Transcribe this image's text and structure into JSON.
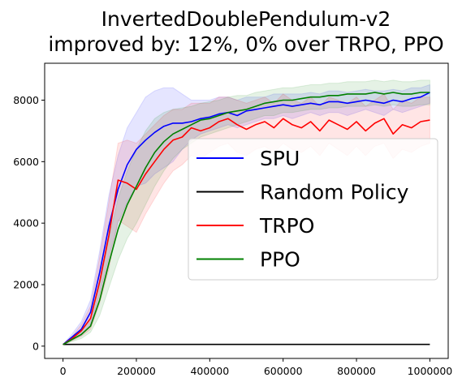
{
  "chart_data": {
    "type": "line",
    "title": [
      "InvertedDoublePendulum-v2",
      "improved by: 12%, 0% over TRPO, PPO"
    ],
    "xlabel": "",
    "ylabel": "",
    "xlim": [
      -50000,
      1050000
    ],
    "ylim": [
      -400,
      9200
    ],
    "xticks": [
      0,
      200000,
      400000,
      600000,
      800000,
      1000000
    ],
    "yticks": [
      0,
      2000,
      4000,
      6000,
      8000
    ],
    "grid": false,
    "legend_position": "center-right",
    "x": [
      0,
      25000,
      50000,
      75000,
      100000,
      125000,
      150000,
      175000,
      200000,
      225000,
      250000,
      275000,
      300000,
      325000,
      350000,
      375000,
      400000,
      425000,
      450000,
      475000,
      500000,
      525000,
      550000,
      575000,
      600000,
      625000,
      650000,
      675000,
      700000,
      725000,
      750000,
      775000,
      800000,
      825000,
      850000,
      875000,
      900000,
      925000,
      950000,
      975000,
      1000000
    ],
    "series": [
      {
        "name": "SPU",
        "color": "#0000ff",
        "band": true,
        "values": [
          50,
          300,
          550,
          1100,
          2400,
          3900,
          5100,
          5900,
          6400,
          6700,
          6950,
          7150,
          7250,
          7250,
          7300,
          7400,
          7450,
          7550,
          7600,
          7500,
          7650,
          7700,
          7750,
          7800,
          7850,
          7800,
          7850,
          7900,
          7850,
          7950,
          7950,
          7900,
          7950,
          8000,
          7950,
          7900,
          8000,
          7950,
          8050,
          8100,
          8250
        ],
        "lower": [
          50,
          200,
          350,
          700,
          1700,
          2900,
          4000,
          4700,
          5200,
          5300,
          5600,
          5800,
          6000,
          6400,
          6700,
          6900,
          7000,
          7100,
          7200,
          7100,
          7200,
          7300,
          7400,
          7400,
          7500,
          7400,
          7500,
          7600,
          7500,
          7600,
          7600,
          7500,
          7600,
          7700,
          7600,
          7500,
          7700,
          7600,
          7700,
          7800,
          7900
        ],
        "upper": [
          50,
          400,
          800,
          1500,
          3100,
          4900,
          6200,
          7100,
          7600,
          8100,
          8300,
          8400,
          8400,
          8200,
          8000,
          8000,
          8000,
          8100,
          8100,
          8000,
          8100,
          8100,
          8100,
          8200,
          8200,
          8200,
          8200,
          8250,
          8200,
          8300,
          8300,
          8250,
          8300,
          8350,
          8300,
          8300,
          8350,
          8300,
          8400,
          8400,
          8500
        ]
      },
      {
        "name": "Random Policy",
        "color": "#000000",
        "band": false,
        "values": [
          55,
          55,
          55,
          55,
          55,
          55,
          55,
          55,
          55,
          55,
          55,
          55,
          55,
          55,
          55,
          55,
          55,
          55,
          55,
          55,
          55,
          55,
          55,
          55,
          55,
          55,
          55,
          55,
          55,
          55,
          55,
          55,
          55,
          55,
          55,
          55,
          55,
          55,
          55,
          55,
          55
        ]
      },
      {
        "name": "TRPO",
        "color": "#ff0000",
        "band": true,
        "values": [
          50,
          250,
          500,
          900,
          2100,
          3600,
          5400,
          5300,
          5100,
          5600,
          6000,
          6400,
          6700,
          6800,
          7100,
          7000,
          7100,
          7300,
          7400,
          7200,
          7050,
          7200,
          7300,
          7100,
          7400,
          7200,
          7100,
          7300,
          7000,
          7350,
          7200,
          7050,
          7300,
          7000,
          7250,
          7400,
          6900,
          7200,
          7100,
          7300,
          7350
        ],
        "lower": [
          50,
          180,
          320,
          550,
          1400,
          2500,
          4100,
          3900,
          3700,
          4300,
          4800,
          5300,
          5700,
          5900,
          6200,
          6100,
          6300,
          6500,
          6600,
          6300,
          6200,
          6400,
          6500,
          6300,
          6600,
          6400,
          6300,
          6500,
          6200,
          6600,
          6400,
          6200,
          6500,
          6200,
          6500,
          6600,
          6100,
          6400,
          6300,
          6500,
          6600
        ],
        "upper": [
          50,
          320,
          700,
          1300,
          2900,
          4700,
          6600,
          6700,
          6600,
          6900,
          7200,
          7500,
          7700,
          7700,
          7900,
          7900,
          7900,
          8100,
          8100,
          8000,
          7900,
          8000,
          8100,
          7900,
          8200,
          8000,
          7900,
          8100,
          7800,
          8100,
          8000,
          7900,
          8100,
          7800,
          8000,
          8200,
          7700,
          8000,
          7900,
          8100,
          8100
        ]
      },
      {
        "name": "PPO",
        "color": "#008000",
        "band": true,
        "values": [
          50,
          220,
          380,
          650,
          1500,
          2700,
          3800,
          4600,
          5200,
          5800,
          6300,
          6650,
          6900,
          7050,
          7200,
          7350,
          7400,
          7500,
          7600,
          7650,
          7700,
          7800,
          7900,
          7950,
          8000,
          8000,
          8050,
          8100,
          8100,
          8150,
          8150,
          8200,
          8200,
          8200,
          8250,
          8200,
          8250,
          8200,
          8200,
          8250,
          8250
        ],
        "lower": [
          50,
          150,
          250,
          450,
          1000,
          1900,
          2800,
          3500,
          4000,
          4600,
          5200,
          5700,
          6100,
          6400,
          6600,
          6800,
          6900,
          7000,
          7100,
          7200,
          7300,
          7400,
          7500,
          7500,
          7600,
          7600,
          7650,
          7700,
          7700,
          7750,
          7750,
          7800,
          7800,
          7800,
          7850,
          7800,
          7850,
          7800,
          7800,
          7850,
          7850
        ],
        "upper": [
          50,
          300,
          520,
          900,
          2000,
          3500,
          4800,
          5700,
          6400,
          7000,
          7400,
          7600,
          7700,
          7750,
          7800,
          7900,
          7950,
          8000,
          8100,
          8150,
          8150,
          8250,
          8300,
          8350,
          8400,
          8400,
          8450,
          8500,
          8500,
          8550,
          8550,
          8600,
          8600,
          8600,
          8650,
          8600,
          8650,
          8600,
          8600,
          8650,
          8650
        ]
      }
    ]
  }
}
